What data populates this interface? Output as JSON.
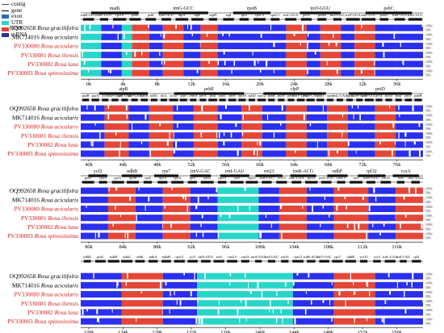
{
  "legend": [
    {
      "name": "contig",
      "color": "#4d4d4d",
      "kind": "arrow"
    },
    {
      "name": "gene",
      "color": "#000000",
      "kind": "arrow"
    },
    {
      "name": "exon",
      "color": "#2b6ab8",
      "kind": "box"
    },
    {
      "name": "UTR",
      "color": "#2bd4d4",
      "kind": "box"
    },
    {
      "name": "CNS",
      "color": "#e2413a",
      "kind": "box"
    },
    {
      "name": "mRNA",
      "color": "#2e3092",
      "kind": "box"
    }
  ],
  "colors": {
    "exon": "#2a2ff0",
    "utr": "#27d6c8",
    "cns": "#e44637",
    "gap": "#ffffff",
    "gene_bar": "#111111"
  },
  "species": [
    {
      "acc": "OQ992658",
      "name": "Rosa gracilifolra",
      "highlight": false
    },
    {
      "acc": "MK714016",
      "name": "Rosa acicularis",
      "highlight": false
    },
    {
      "acc": "PV330080",
      "name": "Rosa acicularis",
      "highlight": true
    },
    {
      "acc": "PV330081",
      "name": "Rosa iliensis",
      "highlight": true
    },
    {
      "acc": "PV330082",
      "name": "Rosa laxa",
      "highlight": true
    },
    {
      "acc": "PV330083",
      "name": "Rosa spinosissima",
      "highlight": true
    }
  ],
  "pct_labels": [
    "100%",
    "50%"
  ],
  "panels": [
    {
      "ticks": [
        "0k",
        "4k",
        "8k",
        "12k",
        "16k",
        "20k",
        "24k",
        "28k",
        "32k",
        "36k"
      ],
      "genes_top": [
        "matK",
        "trnG-GCC",
        "rpoB",
        "trnT-GGU",
        "psbC"
      ],
      "genes_mid": [
        "trnH-GUG",
        "trnK-UUU",
        "rps16",
        "psbK",
        "psbI",
        "trnS-GCU",
        "atpA",
        "atpF",
        "atpH",
        "atpI",
        "rps2",
        "rpoC2",
        "rpoC1",
        "trnC-GCA",
        "petN",
        "psbM",
        "trnD-GUC",
        "trnY-GUA",
        "trnE-UUC",
        "psbD",
        "trnS-UGA",
        "trnG-UCC"
      ],
      "blocks": [
        [
          0,
          0.06,
          "utr"
        ],
        [
          0.06,
          0.12,
          "exon"
        ],
        [
          0.12,
          0.15,
          "utr"
        ],
        [
          0.15,
          0.2,
          "cns"
        ],
        [
          0.2,
          0.24,
          "exon"
        ],
        [
          0.24,
          0.3,
          "cns"
        ],
        [
          0.3,
          0.35,
          "exon"
        ],
        [
          0.35,
          0.4,
          "cns"
        ],
        [
          0.4,
          0.48,
          "exon"
        ],
        [
          0.48,
          0.54,
          "exon"
        ],
        [
          0.54,
          0.6,
          "exon"
        ],
        [
          0.6,
          0.66,
          "cns"
        ],
        [
          0.66,
          0.7,
          "exon"
        ],
        [
          0.7,
          0.76,
          "cns"
        ],
        [
          0.76,
          0.8,
          "exon"
        ],
        [
          0.8,
          0.86,
          "cns"
        ],
        [
          0.86,
          0.92,
          "exon"
        ],
        [
          0.92,
          1,
          "exon"
        ]
      ]
    },
    {
      "ticks": [
        "40k",
        "44k",
        "48k",
        "52k",
        "56k",
        "60k",
        "64k",
        "68k",
        "72k",
        "76k"
      ],
      "genes_top": [
        "atpB",
        "psbE",
        "clpP",
        "petD"
      ],
      "genes_mid": [
        "psaB",
        "psaA",
        "ycf3",
        "trnS-GGA",
        "trnT-UGU",
        "trnF-GAA",
        "ndhK",
        "ndhC",
        "rbcL",
        "accD",
        "psaI",
        "cemA",
        "petA",
        "psbJ",
        "psbL",
        "psbF",
        "rps18",
        "rpl20",
        "rps12",
        "psbB",
        "psbN",
        "petB",
        "trnV-UAC",
        "trnM-CAU",
        "ndhJ",
        "rps4",
        "trnL-UAA",
        "atpE",
        "trnW-CCA",
        "trnP-UGG",
        "ycf4",
        "rpl33",
        "psaJ",
        "psbT",
        "psbH"
      ],
      "blocks": [
        [
          0,
          0.07,
          "exon"
        ],
        [
          0.07,
          0.14,
          "cns"
        ],
        [
          0.14,
          0.2,
          "exon"
        ],
        [
          0.2,
          0.27,
          "cns"
        ],
        [
          0.27,
          0.33,
          "exon"
        ],
        [
          0.33,
          0.4,
          "cns"
        ],
        [
          0.4,
          0.47,
          "exon"
        ],
        [
          0.47,
          0.53,
          "cns"
        ],
        [
          0.53,
          0.6,
          "exon"
        ],
        [
          0.6,
          0.66,
          "cns"
        ],
        [
          0.66,
          0.72,
          "exon"
        ],
        [
          0.72,
          0.78,
          "cns"
        ],
        [
          0.78,
          0.86,
          "exon"
        ],
        [
          0.86,
          0.92,
          "cns"
        ],
        [
          0.92,
          1,
          "exon"
        ]
      ]
    },
    {
      "ticks": [
        "80k",
        "84k",
        "88k",
        "92k",
        "96k",
        "100k",
        "104k",
        "108k",
        "112k",
        "116k"
      ],
      "genes_top": [
        "ycf2",
        "ndhB",
        "rps7",
        "trnV-GAC",
        "trnI-GAU",
        "rrn23",
        "trnR-ACG",
        "ndhF",
        "rpl32",
        "ccsA"
      ],
      "genes_mid": [
        "petD",
        "rpoA",
        "rps11",
        "rpl36",
        "rps8",
        "rpl14",
        "rpl16",
        "rps3",
        "rpl22",
        "rps19",
        "rpl2",
        "rpl23",
        "trnI-CAU",
        "ycf15",
        "trnL-CAA",
        "rps12",
        "trnA-UGC",
        "rrn4.5",
        "rrn5",
        "trnN-GUU",
        "rrn16",
        "rrn5",
        "trnL-UAG"
      ],
      "blocks": [
        [
          0,
          0.08,
          "exon"
        ],
        [
          0.08,
          0.16,
          "cns"
        ],
        [
          0.16,
          0.24,
          "exon"
        ],
        [
          0.24,
          0.32,
          "cns"
        ],
        [
          0.32,
          0.4,
          "exon"
        ],
        [
          0.4,
          0.52,
          "utr"
        ],
        [
          0.52,
          0.58,
          "exon"
        ],
        [
          0.58,
          0.66,
          "cns"
        ],
        [
          0.66,
          0.74,
          "exon"
        ],
        [
          0.74,
          0.84,
          "cns"
        ],
        [
          0.84,
          0.92,
          "exon"
        ],
        [
          0.92,
          1,
          "cns"
        ]
      ]
    },
    {
      "ticks": [
        "120k",
        "124k",
        "128k",
        "132k",
        "136k",
        "140k",
        "144k",
        "148k",
        "152k",
        "156k"
      ],
      "genes_top": [
        "ndhD",
        "psaC",
        "ndhE",
        "ndhG",
        "ndhI",
        "ndhA",
        "ndhH",
        "rps15",
        "ycf1",
        "trnN-GUU",
        "rrn5",
        "rrn4.5",
        "rrn23",
        "trnA-UGC",
        "trnI-GAU",
        "rrn16",
        "rps12",
        "trnR-ACG",
        "trnV-GAC",
        "rps7",
        "ndhB",
        "ycf15",
        "ycf2",
        "trnL-CAA",
        "trnI-CAU",
        "rpl2"
      ],
      "genes_mid": [],
      "blocks": [
        [
          0,
          0.12,
          "exon"
        ],
        [
          0.12,
          0.24,
          "cns"
        ],
        [
          0.24,
          0.34,
          "exon"
        ],
        [
          0.34,
          0.62,
          "utr"
        ],
        [
          0.62,
          0.74,
          "exon"
        ],
        [
          0.74,
          0.86,
          "cns"
        ],
        [
          0.86,
          1,
          "exon"
        ]
      ]
    }
  ]
}
